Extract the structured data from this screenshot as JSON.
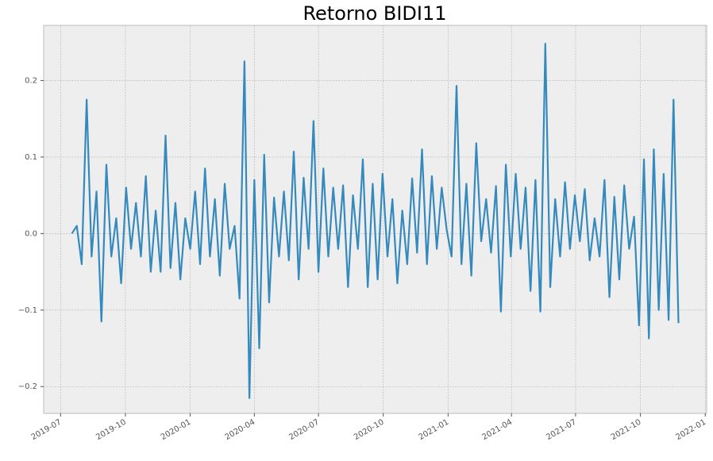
{
  "chart_data": {
    "type": "line",
    "title": "Retorno BIDI11",
    "x": [
      "2019-07-17",
      "2019-07-24",
      "2019-07-31",
      "2019-08-07",
      "2019-08-14",
      "2019-08-21",
      "2019-08-28",
      "2019-09-04",
      "2019-09-11",
      "2019-09-18",
      "2019-09-25",
      "2019-10-02",
      "2019-10-09",
      "2019-10-16",
      "2019-10-23",
      "2019-10-30",
      "2019-11-06",
      "2019-11-13",
      "2019-11-20",
      "2019-11-27",
      "2019-12-04",
      "2019-12-11",
      "2019-12-18",
      "2019-12-25",
      "2020-01-01",
      "2020-01-08",
      "2020-01-15",
      "2020-01-22",
      "2020-01-29",
      "2020-02-05",
      "2020-02-12",
      "2020-02-19",
      "2020-02-26",
      "2020-03-04",
      "2020-03-11",
      "2020-03-18",
      "2020-03-25",
      "2020-04-01",
      "2020-04-08",
      "2020-04-15",
      "2020-04-22",
      "2020-04-29",
      "2020-05-06",
      "2020-05-13",
      "2020-05-20",
      "2020-05-27",
      "2020-06-03",
      "2020-06-10",
      "2020-06-17",
      "2020-06-24",
      "2020-07-01",
      "2020-07-08",
      "2020-07-15",
      "2020-07-22",
      "2020-07-29",
      "2020-08-05",
      "2020-08-12",
      "2020-08-19",
      "2020-08-26",
      "2020-09-02",
      "2020-09-09",
      "2020-09-16",
      "2020-09-23",
      "2020-09-30",
      "2020-10-07",
      "2020-10-14",
      "2020-10-21",
      "2020-10-28",
      "2020-11-04",
      "2020-11-11",
      "2020-11-18",
      "2020-11-25",
      "2020-12-02",
      "2020-12-09",
      "2020-12-16",
      "2020-12-23",
      "2020-12-30",
      "2021-01-06",
      "2021-01-13",
      "2021-01-20",
      "2021-01-27",
      "2021-02-03",
      "2021-02-10",
      "2021-02-17",
      "2021-02-24",
      "2021-03-03",
      "2021-03-10",
      "2021-03-17",
      "2021-03-24",
      "2021-03-31",
      "2021-04-07",
      "2021-04-14",
      "2021-04-21",
      "2021-04-28",
      "2021-05-05",
      "2021-05-12",
      "2021-05-19",
      "2021-05-26",
      "2021-06-02",
      "2021-06-09",
      "2021-06-16",
      "2021-06-23",
      "2021-06-30",
      "2021-07-07",
      "2021-07-14",
      "2021-07-21",
      "2021-07-28",
      "2021-08-04",
      "2021-08-11",
      "2021-08-18",
      "2021-08-25",
      "2021-09-01",
      "2021-09-08",
      "2021-09-15",
      "2021-09-22",
      "2021-09-29",
      "2021-10-06",
      "2021-10-13",
      "2021-10-20",
      "2021-10-27",
      "2021-11-03",
      "2021-11-10",
      "2021-11-17",
      "2021-11-24"
    ],
    "values": [
      0.0,
      0.01,
      -0.04,
      0.175,
      -0.03,
      0.055,
      -0.115,
      0.09,
      -0.03,
      0.02,
      -0.065,
      0.06,
      -0.02,
      0.04,
      -0.03,
      0.075,
      -0.05,
      0.03,
      -0.05,
      0.128,
      -0.045,
      0.04,
      -0.06,
      0.02,
      -0.02,
      0.055,
      -0.04,
      0.085,
      -0.03,
      0.045,
      -0.055,
      0.065,
      -0.02,
      0.01,
      -0.085,
      0.225,
      -0.215,
      0.07,
      -0.15,
      0.103,
      -0.09,
      0.047,
      -0.03,
      0.055,
      -0.035,
      0.107,
      -0.06,
      0.073,
      -0.02,
      0.147,
      -0.05,
      0.085,
      -0.03,
      0.06,
      -0.02,
      0.063,
      -0.07,
      0.05,
      -0.02,
      0.097,
      -0.07,
      0.065,
      -0.06,
      0.078,
      -0.03,
      0.045,
      -0.065,
      0.03,
      -0.04,
      0.072,
      -0.025,
      0.11,
      -0.04,
      0.075,
      -0.02,
      0.06,
      0.005,
      -0.03,
      0.193,
      -0.04,
      0.065,
      -0.055,
      0.118,
      -0.01,
      0.045,
      -0.025,
      0.062,
      -0.102,
      0.09,
      -0.03,
      0.078,
      -0.02,
      0.06,
      -0.075,
      0.07,
      -0.102,
      0.248,
      -0.07,
      0.045,
      -0.03,
      0.067,
      -0.02,
      0.05,
      -0.01,
      0.058,
      -0.035,
      0.02,
      -0.03,
      0.07,
      -0.083,
      0.048,
      -0.06,
      0.063,
      -0.02,
      0.022,
      -0.12,
      0.097,
      -0.137,
      0.11,
      -0.1,
      0.078,
      -0.113,
      0.175,
      -0.117
    ],
    "color": "#348abd",
    "xlim": [
      "2019-06-07",
      "2022-01-03"
    ],
    "xticks": [
      "2019-07",
      "2019-10",
      "2020-01",
      "2020-04",
      "2020-07",
      "2020-10",
      "2021-01",
      "2021-04",
      "2021-07",
      "2021-10",
      "2022-01"
    ],
    "ylim": [
      -0.235,
      0.272
    ],
    "yticks": [
      {
        "value": -0.2,
        "label": "−0.2"
      },
      {
        "value": -0.1,
        "label": "−0.1"
      },
      {
        "value": 0,
        "label": "0.0"
      },
      0.1,
      0.2
    ],
    "grid": true
  }
}
